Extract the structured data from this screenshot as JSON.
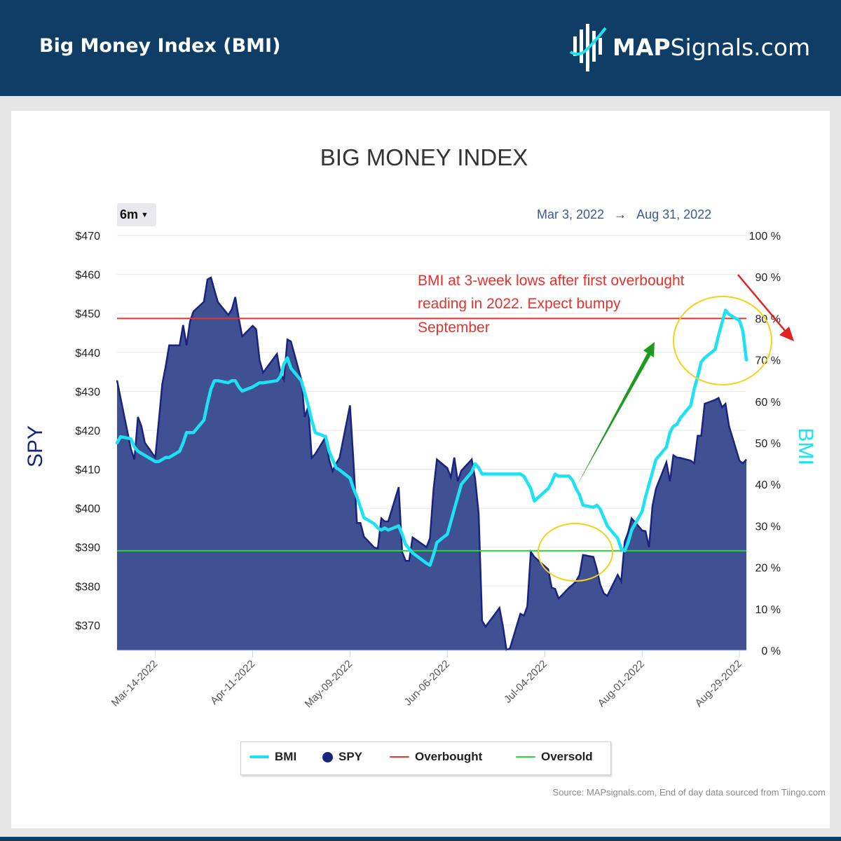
{
  "header": {
    "title": "Big Money Index (BMI)",
    "brand_bold": "MAP",
    "brand_rest": "Signals.com"
  },
  "controls": {
    "range_label": "6m",
    "date_from": "Mar 3, 2022",
    "arrow": "→",
    "date_to": "Aug 31, 2022"
  },
  "annotation": {
    "lines": [
      "BMI at 3-week lows after first overbought",
      "reading in 2022. Expect bumpy",
      "September"
    ]
  },
  "source": "Source: MAPsignals.com, End of day data sourced from Tiingo.com",
  "colors": {
    "header_bg": "#0f3d66",
    "spy_fill": "#3f5192",
    "spy_line": "#1a237e",
    "bmi": "#1de2f2",
    "overbought": "#e63535",
    "oversold": "#22dd33",
    "annotation": "#e5322d",
    "circle": "#f2d21b",
    "up_arrow": "#1e9a1e",
    "down_arrow": "#e32121"
  },
  "icons": {
    "logo": "map-signals-logo-icon",
    "dropdown": "caret-down-icon"
  },
  "chart_data": {
    "type": "area",
    "title": "BIG MONEY INDEX",
    "ylabel_left": "SPY",
    "ylabel_right": "BMI",
    "y_left_ticks": [
      "$370",
      "$380",
      "$390",
      "$400",
      "$410",
      "$420",
      "$430",
      "$440",
      "$450",
      "$460",
      "$470"
    ],
    "y_left_values": [
      370,
      380,
      390,
      400,
      410,
      420,
      430,
      440,
      450,
      460,
      470
    ],
    "y_right_ticks": [
      "0 %",
      "10 %",
      "20 %",
      "30 %",
      "40 %",
      "50 %",
      "60 %",
      "70 %",
      "80 %",
      "90 %",
      "100 %"
    ],
    "y_right_values": [
      0,
      10,
      20,
      30,
      40,
      50,
      60,
      70,
      80,
      90,
      100
    ],
    "ylim_left": [
      363.5,
      470
    ],
    "ylim_right": [
      0,
      100
    ],
    "xlim": [
      "2022-03-03",
      "2022-08-31"
    ],
    "x_ticks": [
      "Mar-14-2022",
      "Apr-11-2022",
      "May-09-2022",
      "Jun-06-2022",
      "Jul-04-2022",
      "Aug-01-2022",
      "Aug-29-2022"
    ],
    "x_tick_dates": [
      "2022-03-14",
      "2022-04-11",
      "2022-05-09",
      "2022-06-06",
      "2022-07-04",
      "2022-08-01",
      "2022-08-29"
    ],
    "legend": [
      "BMI",
      "SPY",
      "Overbought",
      "Oversold"
    ],
    "legend_position": "bottom",
    "thresholds": {
      "overbought": 80,
      "oversold": 24
    },
    "series": [
      {
        "name": "SPY",
        "type": "area",
        "points": [
          [
            "2022-03-03",
            432.8
          ],
          [
            "2022-03-04",
            428.3
          ],
          [
            "2022-03-07",
            415.2
          ],
          [
            "2022-03-08",
            412.5
          ],
          [
            "2022-03-09",
            423.4
          ],
          [
            "2022-03-10",
            421.1
          ],
          [
            "2022-03-11",
            416.8
          ],
          [
            "2022-03-14",
            413.0
          ],
          [
            "2022-03-15",
            422.2
          ],
          [
            "2022-03-16",
            431.8
          ],
          [
            "2022-03-17",
            436.5
          ],
          [
            "2022-03-18",
            441.8
          ],
          [
            "2022-03-21",
            441.8
          ],
          [
            "2022-03-22",
            447.0
          ],
          [
            "2022-03-23",
            441.8
          ],
          [
            "2022-03-24",
            448.0
          ],
          [
            "2022-03-25",
            450.5
          ],
          [
            "2022-03-28",
            453.0
          ],
          [
            "2022-03-29",
            458.7
          ],
          [
            "2022-03-30",
            459.2
          ],
          [
            "2022-03-31",
            456.0
          ],
          [
            "2022-04-01",
            452.9
          ],
          [
            "2022-04-04",
            449.6
          ],
          [
            "2022-04-05",
            451.0
          ],
          [
            "2022-04-06",
            454.2
          ],
          [
            "2022-04-07",
            448.8
          ],
          [
            "2022-04-08",
            444.1
          ],
          [
            "2022-04-11",
            446.8
          ],
          [
            "2022-04-12",
            445.9
          ],
          [
            "2022-04-13",
            438.0
          ],
          [
            "2022-04-14",
            434.8
          ],
          [
            "2022-04-18",
            439.6
          ],
          [
            "2022-04-19",
            434.6
          ],
          [
            "2022-04-20",
            433.0
          ],
          [
            "2022-04-21",
            443.3
          ],
          [
            "2022-04-22",
            442.8
          ],
          [
            "2022-04-25",
            433.0
          ],
          [
            "2022-04-26",
            423.4
          ],
          [
            "2022-04-27",
            426.1
          ],
          [
            "2022-04-28",
            412.9
          ],
          [
            "2022-04-29",
            413.9
          ],
          [
            "2022-05-02",
            418.3
          ],
          [
            "2022-05-03",
            412.5
          ],
          [
            "2022-05-04",
            409.5
          ],
          [
            "2022-05-05",
            411.5
          ],
          [
            "2022-05-06",
            412.9
          ],
          [
            "2022-05-09",
            426.4
          ],
          [
            "2022-05-10",
            411.8
          ],
          [
            "2022-05-11",
            396.2
          ],
          [
            "2022-05-12",
            396.2
          ],
          [
            "2022-05-13",
            392.7
          ],
          [
            "2022-05-16",
            389.9
          ],
          [
            "2022-05-17",
            389.7
          ],
          [
            "2022-05-18",
            397.4
          ],
          [
            "2022-05-19",
            396.6
          ],
          [
            "2022-05-20",
            396.6
          ],
          [
            "2022-05-23",
            405.4
          ],
          [
            "2022-05-24",
            388.8
          ],
          [
            "2022-05-25",
            386.5
          ],
          [
            "2022-05-26",
            386.5
          ],
          [
            "2022-05-27",
            392.5
          ],
          [
            "2022-05-31",
            390.0
          ],
          [
            "2022-06-01",
            392.3
          ],
          [
            "2022-06-02",
            404.6
          ],
          [
            "2022-06-03",
            412.5
          ],
          [
            "2022-06-06",
            410.3
          ],
          [
            "2022-06-07",
            407.9
          ],
          [
            "2022-06-08",
            413.0
          ],
          [
            "2022-06-09",
            406.9
          ],
          [
            "2022-06-10",
            409.6
          ],
          [
            "2022-06-13",
            412.5
          ],
          [
            "2022-06-14",
            407.5
          ],
          [
            "2022-06-15",
            398.6
          ],
          [
            "2022-06-16",
            371.1
          ],
          [
            "2022-06-17",
            369.6
          ],
          [
            "2022-06-21",
            374.4
          ],
          [
            "2022-06-22",
            369.6
          ],
          [
            "2022-06-23",
            363.6
          ],
          [
            "2022-06-24",
            364.0
          ],
          [
            "2022-06-27",
            372.9
          ],
          [
            "2022-06-28",
            372.4
          ],
          [
            "2022-06-29",
            374.8
          ],
          [
            "2022-06-30",
            388.8
          ],
          [
            "2022-07-01",
            387.5
          ],
          [
            "2022-07-05",
            384.3
          ],
          [
            "2022-07-06",
            379.6
          ],
          [
            "2022-07-07",
            379.3
          ],
          [
            "2022-07-08",
            376.8
          ],
          [
            "2022-07-11",
            379.6
          ],
          [
            "2022-07-12",
            380.3
          ],
          [
            "2022-07-13",
            381.2
          ],
          [
            "2022-07-14",
            382.9
          ],
          [
            "2022-07-15",
            388.0
          ],
          [
            "2022-07-18",
            387.5
          ],
          [
            "2022-07-19",
            384.3
          ],
          [
            "2022-07-20",
            380.3
          ],
          [
            "2022-07-21",
            378.1
          ],
          [
            "2022-07-22",
            377.5
          ],
          [
            "2022-07-25",
            382.9
          ],
          [
            "2022-07-26",
            381.2
          ],
          [
            "2022-07-27",
            391.4
          ],
          [
            "2022-07-28",
            393.8
          ],
          [
            "2022-07-29",
            397.4
          ],
          [
            "2022-08-01",
            394.3
          ],
          [
            "2022-08-02",
            394.1
          ],
          [
            "2022-08-03",
            390.0
          ],
          [
            "2022-08-04",
            400.6
          ],
          [
            "2022-08-05",
            405.0
          ],
          [
            "2022-08-08",
            411.8
          ],
          [
            "2022-08-09",
            406.9
          ],
          [
            "2022-08-10",
            413.6
          ],
          [
            "2022-08-11",
            413.0
          ],
          [
            "2022-08-12",
            412.9
          ],
          [
            "2022-08-15",
            412.2
          ],
          [
            "2022-08-16",
            411.5
          ],
          [
            "2022-08-17",
            418.6
          ],
          [
            "2022-08-18",
            418.6
          ],
          [
            "2022-08-19",
            426.8
          ],
          [
            "2022-08-22",
            427.8
          ],
          [
            "2022-08-23",
            428.3
          ],
          [
            "2022-08-24",
            425.9
          ],
          [
            "2022-08-25",
            426.8
          ],
          [
            "2022-08-26",
            421.1
          ],
          [
            "2022-08-29",
            412.2
          ],
          [
            "2022-08-30",
            411.5
          ],
          [
            "2022-08-31",
            412.5
          ]
        ]
      },
      {
        "name": "BMI",
        "type": "line",
        "points": [
          [
            "2022-03-03",
            50.0
          ],
          [
            "2022-03-04",
            51.5
          ],
          [
            "2022-03-07",
            51.0
          ],
          [
            "2022-03-08",
            49.0
          ],
          [
            "2022-03-09",
            48.0
          ],
          [
            "2022-03-10",
            47.5
          ],
          [
            "2022-03-11",
            47.0
          ],
          [
            "2022-03-14",
            45.5
          ],
          [
            "2022-03-15",
            45.5
          ],
          [
            "2022-03-16",
            46.0
          ],
          [
            "2022-03-17",
            46.5
          ],
          [
            "2022-03-18",
            46.5
          ],
          [
            "2022-03-21",
            48.0
          ],
          [
            "2022-03-22",
            50.0
          ],
          [
            "2022-03-23",
            52.5
          ],
          [
            "2022-03-24",
            52.5
          ],
          [
            "2022-03-25",
            52.5
          ],
          [
            "2022-03-28",
            55.5
          ],
          [
            "2022-03-29",
            59.5
          ],
          [
            "2022-03-30",
            63.0
          ],
          [
            "2022-03-31",
            65.0
          ],
          [
            "2022-04-01",
            65.0
          ],
          [
            "2022-04-04",
            64.5
          ],
          [
            "2022-04-05",
            65.0
          ],
          [
            "2022-04-06",
            65.0
          ],
          [
            "2022-04-07",
            63.5
          ],
          [
            "2022-04-08",
            62.5
          ],
          [
            "2022-04-11",
            63.5
          ],
          [
            "2022-04-12",
            64.0
          ],
          [
            "2022-04-13",
            64.5
          ],
          [
            "2022-04-14",
            64.5
          ],
          [
            "2022-04-18",
            65.0
          ],
          [
            "2022-04-19",
            66.0
          ],
          [
            "2022-04-20",
            69.0
          ],
          [
            "2022-04-21",
            70.5
          ],
          [
            "2022-04-22",
            68.0
          ],
          [
            "2022-04-25",
            65.0
          ],
          [
            "2022-04-26",
            62.0
          ],
          [
            "2022-04-27",
            59.0
          ],
          [
            "2022-04-28",
            55.5
          ],
          [
            "2022-04-29",
            52.5
          ],
          [
            "2022-05-02",
            51.5
          ],
          [
            "2022-05-03",
            48.0
          ],
          [
            "2022-05-04",
            46.0
          ],
          [
            "2022-05-05",
            44.0
          ],
          [
            "2022-05-06",
            43.5
          ],
          [
            "2022-05-09",
            41.5
          ],
          [
            "2022-05-10",
            39.0
          ],
          [
            "2022-05-11",
            37.0
          ],
          [
            "2022-05-12",
            34.5
          ],
          [
            "2022-05-13",
            32.0
          ],
          [
            "2022-05-16",
            30.5
          ],
          [
            "2022-05-17",
            29.5
          ],
          [
            "2022-05-18",
            29.0
          ],
          [
            "2022-05-19",
            29.5
          ],
          [
            "2022-05-20",
            29.0
          ],
          [
            "2022-05-23",
            30.0
          ],
          [
            "2022-05-24",
            28.0
          ],
          [
            "2022-05-25",
            25.5
          ],
          [
            "2022-05-26",
            24.5
          ],
          [
            "2022-05-27",
            23.5
          ],
          [
            "2022-05-31",
            21.0
          ],
          [
            "2022-06-01",
            20.5
          ],
          [
            "2022-06-02",
            23.0
          ],
          [
            "2022-06-03",
            26.0
          ],
          [
            "2022-06-06",
            28.0
          ],
          [
            "2022-06-07",
            31.0
          ],
          [
            "2022-06-08",
            34.0
          ],
          [
            "2022-06-09",
            37.0
          ],
          [
            "2022-06-10",
            40.0
          ],
          [
            "2022-06-13",
            43.0
          ],
          [
            "2022-06-14",
            45.0
          ],
          [
            "2022-06-15",
            44.0
          ],
          [
            "2022-06-16",
            42.5
          ],
          [
            "2022-06-17",
            42.5
          ],
          [
            "2022-06-21",
            42.5
          ],
          [
            "2022-06-22",
            42.5
          ],
          [
            "2022-06-23",
            42.5
          ],
          [
            "2022-06-24",
            42.5
          ],
          [
            "2022-06-27",
            42.5
          ],
          [
            "2022-06-28",
            42.0
          ],
          [
            "2022-06-29",
            40.5
          ],
          [
            "2022-06-30",
            39.0
          ],
          [
            "2022-07-01",
            36.0
          ],
          [
            "2022-07-05",
            39.0
          ],
          [
            "2022-07-06",
            40.5
          ],
          [
            "2022-07-07",
            42.5
          ],
          [
            "2022-07-08",
            42.0
          ],
          [
            "2022-07-11",
            42.0
          ],
          [
            "2022-07-12",
            41.0
          ],
          [
            "2022-07-13",
            39.0
          ],
          [
            "2022-07-14",
            37.5
          ],
          [
            "2022-07-15",
            35.0
          ],
          [
            "2022-07-18",
            34.5
          ],
          [
            "2022-07-19",
            35.0
          ],
          [
            "2022-07-20",
            34.0
          ],
          [
            "2022-07-21",
            32.0
          ],
          [
            "2022-07-22",
            30.0
          ],
          [
            "2022-07-25",
            27.0
          ],
          [
            "2022-07-26",
            24.5
          ],
          [
            "2022-07-27",
            24.0
          ],
          [
            "2022-07-28",
            26.0
          ],
          [
            "2022-07-29",
            29.0
          ],
          [
            "2022-08-01",
            33.5
          ],
          [
            "2022-08-02",
            37.0
          ],
          [
            "2022-08-03",
            40.0
          ],
          [
            "2022-08-04",
            43.0
          ],
          [
            "2022-08-05",
            46.0
          ],
          [
            "2022-08-08",
            49.0
          ],
          [
            "2022-08-09",
            52.5
          ],
          [
            "2022-08-10",
            54.0
          ],
          [
            "2022-08-11",
            54.5
          ],
          [
            "2022-08-12",
            56.0
          ],
          [
            "2022-08-15",
            59.0
          ],
          [
            "2022-08-16",
            63.0
          ],
          [
            "2022-08-17",
            66.0
          ],
          [
            "2022-08-18",
            69.5
          ],
          [
            "2022-08-19",
            70.5
          ],
          [
            "2022-08-22",
            72.5
          ],
          [
            "2022-08-23",
            76.0
          ],
          [
            "2022-08-24",
            79.0
          ],
          [
            "2022-08-25",
            82.0
          ],
          [
            "2022-08-26",
            81.0
          ],
          [
            "2022-08-29",
            79.5
          ],
          [
            "2022-08-30",
            77.0
          ],
          [
            "2022-08-31",
            70.0
          ]
        ]
      }
    ]
  }
}
